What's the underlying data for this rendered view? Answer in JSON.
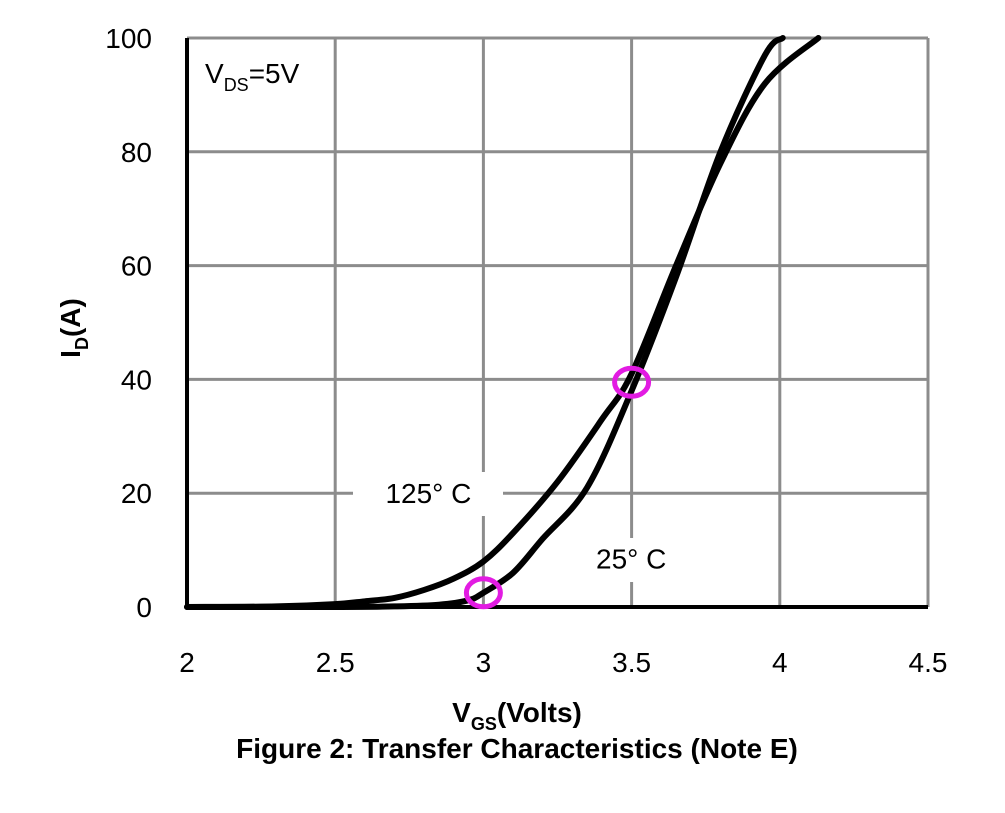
{
  "chart_data": {
    "type": "line",
    "caption": "Figure 2: Transfer Characteristics (Note E)",
    "xlabel": {
      "main": "V",
      "sub": "GS",
      "rest": "(Volts)"
    },
    "ylabel": {
      "main": "I",
      "sub": "D",
      "rest": "(A)"
    },
    "xlim": [
      2,
      4.5
    ],
    "ylim": [
      0,
      100
    ],
    "xticks": [
      2,
      2.5,
      3,
      3.5,
      4,
      4.5
    ],
    "xtick_labels": [
      "2",
      "2.5",
      "3",
      "3.5",
      "4",
      "4.5"
    ],
    "yticks": [
      0,
      20,
      40,
      60,
      80,
      100
    ],
    "ytick_labels": [
      "0",
      "20",
      "40",
      "60",
      "80",
      "100"
    ],
    "grid": true,
    "condition_label": {
      "main": "V",
      "sub": "DS",
      "rest": "=5V"
    },
    "series": [
      {
        "name": "125° C",
        "color": "#000000",
        "points": [
          [
            2.0,
            0
          ],
          [
            2.3,
            0.1
          ],
          [
            2.5,
            0.5
          ],
          [
            2.6,
            1
          ],
          [
            2.7,
            1.6
          ],
          [
            2.8,
            3
          ],
          [
            2.9,
            5
          ],
          [
            3.0,
            8
          ],
          [
            3.1,
            13
          ],
          [
            3.25,
            22
          ],
          [
            3.4,
            33
          ],
          [
            3.5,
            41
          ],
          [
            3.65,
            60
          ],
          [
            3.8,
            78
          ],
          [
            3.95,
            92
          ],
          [
            4.13,
            100
          ]
        ]
      },
      {
        "name": "25° C",
        "color": "#000000",
        "points": [
          [
            2.0,
            0
          ],
          [
            2.5,
            0
          ],
          [
            2.7,
            0.1
          ],
          [
            2.85,
            0.4
          ],
          [
            2.95,
            1.2
          ],
          [
            3.0,
            2.5
          ],
          [
            3.1,
            6
          ],
          [
            3.2,
            12
          ],
          [
            3.35,
            21
          ],
          [
            3.5,
            38
          ],
          [
            3.65,
            58
          ],
          [
            3.8,
            80
          ],
          [
            3.95,
            97
          ],
          [
            4.01,
            100
          ]
        ]
      }
    ],
    "annotations": [
      {
        "text": "125° C",
        "x": 3.0,
        "y": 20,
        "anchor": "end"
      },
      {
        "text": "25° C",
        "x": 3.38,
        "y": 8.5,
        "anchor": "start"
      }
    ],
    "markers": [
      {
        "name": "marker-3V",
        "x": 3.0,
        "y": 2.5,
        "color": "#e21be2"
      },
      {
        "name": "marker-3.5V",
        "x": 3.5,
        "y": 39.5,
        "color": "#e21be2"
      }
    ]
  }
}
